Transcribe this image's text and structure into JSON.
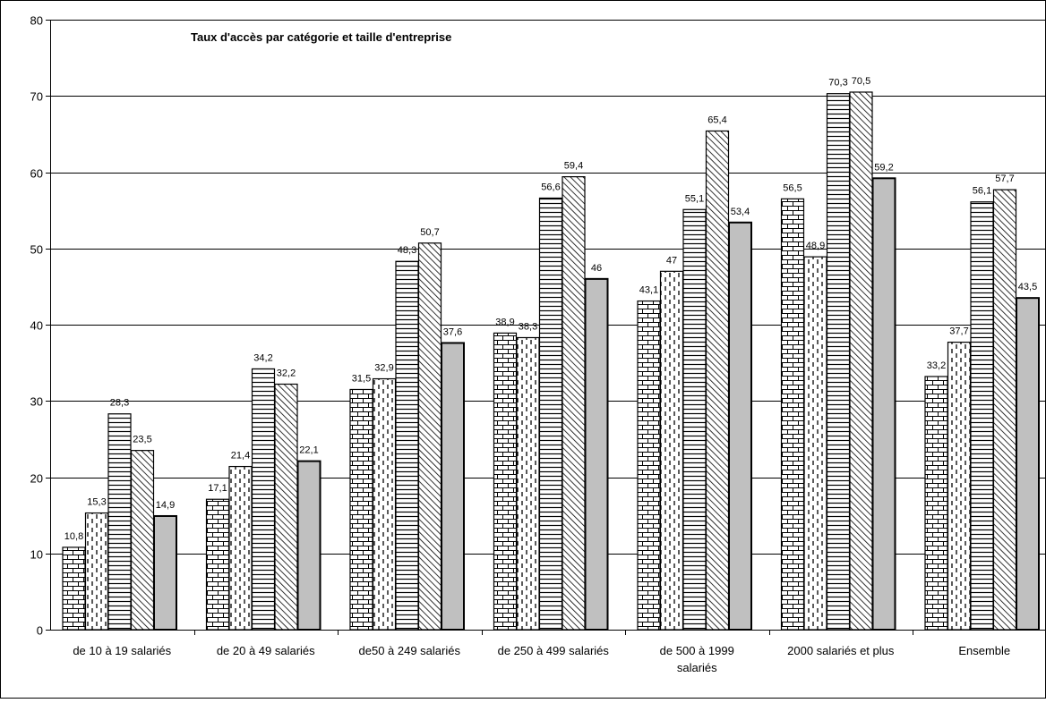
{
  "chart_data": {
    "type": "bar",
    "title": "Taux d'accès par catégorie et taille d'entreprise",
    "xlabel": "",
    "ylabel": "",
    "ylim": [
      0,
      80
    ],
    "yticks": [
      0,
      10,
      20,
      30,
      40,
      50,
      60,
      70,
      80
    ],
    "grid": true,
    "legend": "none",
    "categories": [
      [
        "de 10 à 19 salariés"
      ],
      [
        "de 20 à 49 salariés"
      ],
      [
        "de50 à 249 salariés"
      ],
      [
        "de 250 à 499 salariés"
      ],
      [
        "de 500 à 1999",
        "salariés"
      ],
      [
        "2000 salariés et plus"
      ],
      [
        "Ensemble"
      ]
    ],
    "series": [
      {
        "pattern": "brick",
        "values": [
          10.8,
          17.1,
          31.5,
          38.9,
          43.1,
          56.5,
          33.2
        ],
        "labels": [
          "10,8",
          "17,1",
          "31,5",
          "38,9",
          "43,1",
          "56,5",
          "33,2"
        ]
      },
      {
        "pattern": "dashed-vertical",
        "values": [
          15.3,
          21.4,
          32.9,
          38.3,
          47,
          48.9,
          37.7
        ],
        "labels": [
          "15,3",
          "21,4",
          "32,9",
          "38,3",
          "47",
          "48,9",
          "37,7"
        ]
      },
      {
        "pattern": "horizontal-lines",
        "values": [
          28.3,
          34.2,
          48.3,
          56.6,
          55.1,
          70.3,
          56.1
        ],
        "labels": [
          "28,3",
          "34,2",
          "48,3",
          "56,6",
          "55,1",
          "70,3",
          "56,1"
        ]
      },
      {
        "pattern": "diagonal",
        "values": [
          23.5,
          32.2,
          50.7,
          59.4,
          65.4,
          70.5,
          57.7
        ],
        "labels": [
          "23,5",
          "32,2",
          "50,7",
          "59,4",
          "65,4",
          "70,5",
          "57,7"
        ]
      },
      {
        "pattern": "solid-gray",
        "values": [
          14.9,
          22.1,
          37.6,
          46,
          53.4,
          59.2,
          43.5
        ],
        "labels": [
          "14,9",
          "22,1",
          "37,6",
          "46",
          "53,4",
          "59,2",
          "43,5"
        ]
      }
    ]
  }
}
